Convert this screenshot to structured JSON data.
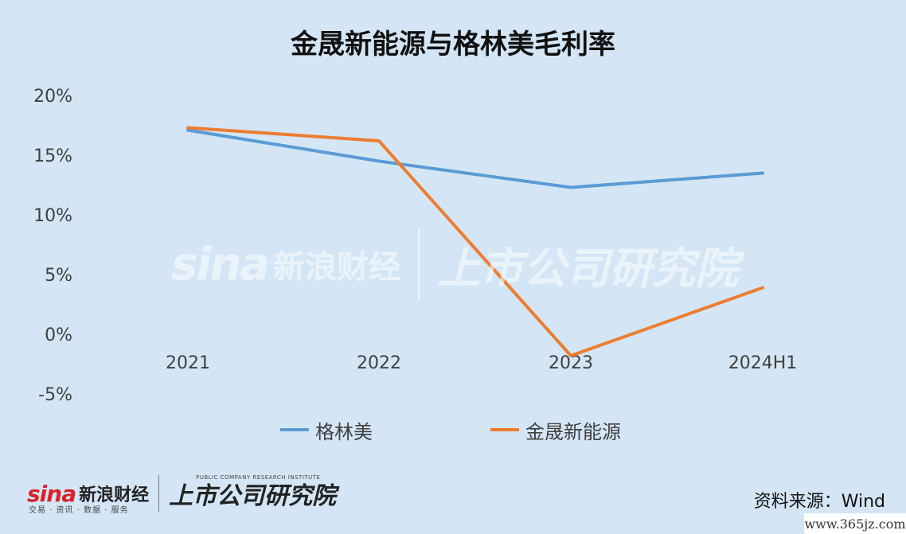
{
  "chart_data": {
    "type": "line",
    "title": "金晟新能源与格林美毛利率",
    "xlabel": "",
    "ylabel": "",
    "categories": [
      "2021",
      "2022",
      "2023",
      "2024H1"
    ],
    "y_ticks": [
      "20%",
      "15%",
      "10%",
      "5%",
      "0%",
      "-5%"
    ],
    "ylim": [
      -5,
      20
    ],
    "grid": false,
    "legend_position": "bottom",
    "series": [
      {
        "name": "格林美",
        "values": [
          17.1,
          14.5,
          12.3,
          13.5
        ],
        "color": "#5b9bd5"
      },
      {
        "name": "金晟新能源",
        "values": [
          17.3,
          16.2,
          -1.8,
          3.9
        ],
        "color": "#ed7d31"
      }
    ]
  },
  "branding": {
    "sina": "sina",
    "sina_cn": "新浪财经",
    "sina_sub": "交易 · 资讯 · 数据 · 服务",
    "institute": "上市公司研究院",
    "institute_sub": "PUBLIC COMPANY RESEARCH INSTITUTE"
  },
  "source": "资料来源：Wind",
  "site": "www.365jz.com"
}
